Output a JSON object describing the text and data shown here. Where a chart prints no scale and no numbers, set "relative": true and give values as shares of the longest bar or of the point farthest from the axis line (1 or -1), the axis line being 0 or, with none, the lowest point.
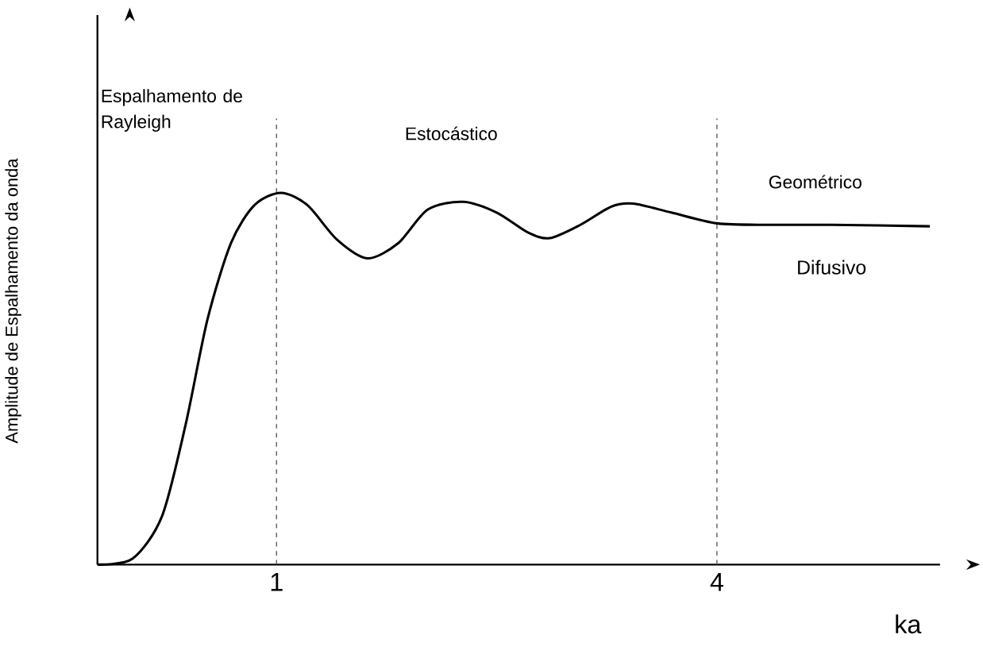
{
  "chart_data": {
    "type": "line",
    "relative": true,
    "xlabel": "ka",
    "ylabel": "Amplitude de Espalhamento da onda",
    "x": [
      -0.22,
      0.02,
      0.22,
      0.38,
      0.53,
      0.69,
      0.85,
      1.03,
      1.21,
      1.41,
      1.62,
      1.83,
      2.03,
      2.27,
      2.5,
      2.71,
      2.86,
      3.07,
      3.28,
      3.43,
      3.69,
      4.0,
      4.36,
      4.78,
      5.45
    ],
    "series": [
      {
        "color": "#000000",
        "values": [
          0,
          0.016,
          0.13,
          0.375,
          0.66,
          0.865,
          0.967,
          1.0,
          0.967,
          0.875,
          0.824,
          0.865,
          0.955,
          0.976,
          0.947,
          0.894,
          0.878,
          0.914,
          0.963,
          0.971,
          0.947,
          0.918,
          0.914,
          0.914,
          0.91
        ]
      }
    ],
    "xlim": [
      -0.22,
      5.52
    ],
    "xticks": [
      1,
      4
    ],
    "ref_lines": [
      {
        "axis": "x",
        "value": 1,
        "color": "#555555",
        "line_style": "dashed"
      },
      {
        "axis": "x",
        "value": 4,
        "color": "#555555",
        "line_style": "dashed"
      }
    ],
    "annotations": [
      "Espalhamento de Rayleigh",
      "Estocástico",
      "Geométrico",
      "Difusivo"
    ],
    "grid": false,
    "marker": "none",
    "line_style": "solid"
  }
}
